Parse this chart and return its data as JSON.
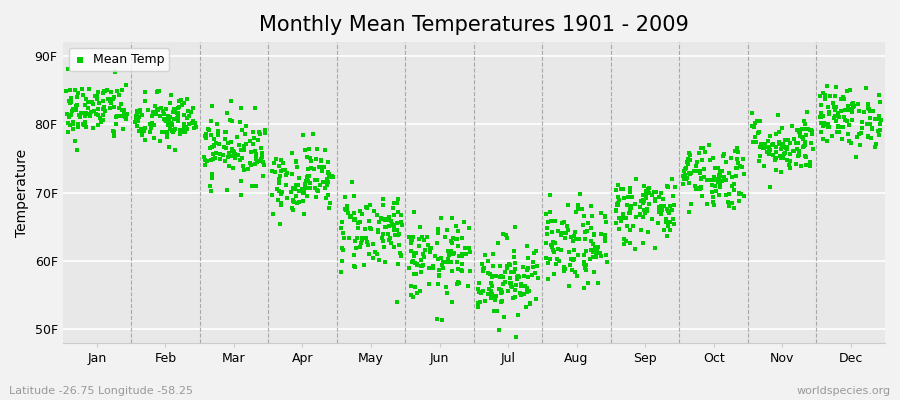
{
  "title": "Monthly Mean Temperatures 1901 - 2009",
  "ylabel": "Temperature",
  "xlabel_bottom_left": "Latitude -26.75 Longitude -58.25",
  "xlabel_bottom_right": "worldspecies.org",
  "ytick_labels": [
    "50F",
    "60F",
    "70F",
    "80F",
    "90F"
  ],
  "ytick_values": [
    50,
    60,
    70,
    80,
    90
  ],
  "ylim": [
    48,
    92
  ],
  "months": [
    "Jan",
    "Feb",
    "Mar",
    "Apr",
    "May",
    "Jun",
    "Jul",
    "Aug",
    "Sep",
    "Oct",
    "Nov",
    "Dec"
  ],
  "dot_color": "#00cc00",
  "bg_color": "#f2f2f2",
  "plot_bg_color": "#f2f2f2",
  "inner_bg_color": "#e8e8e8",
  "legend_label": "Mean Temp",
  "title_fontsize": 15,
  "axis_label_fontsize": 10,
  "tick_fontsize": 9,
  "dot_size": 9,
  "seed": 42,
  "monthly_mean_F": [
    82.0,
    80.5,
    76.5,
    72.0,
    64.5,
    60.0,
    57.5,
    62.0,
    67.5,
    72.5,
    77.0,
    81.0
  ],
  "monthly_std_F": [
    2.2,
    2.0,
    2.5,
    2.5,
    3.0,
    3.0,
    3.0,
    3.0,
    2.5,
    2.5,
    2.2,
    2.2
  ],
  "n_years": 109,
  "dashed_line_color": "#999999",
  "spine_color": "#cccccc",
  "grid_color": "#ffffff"
}
